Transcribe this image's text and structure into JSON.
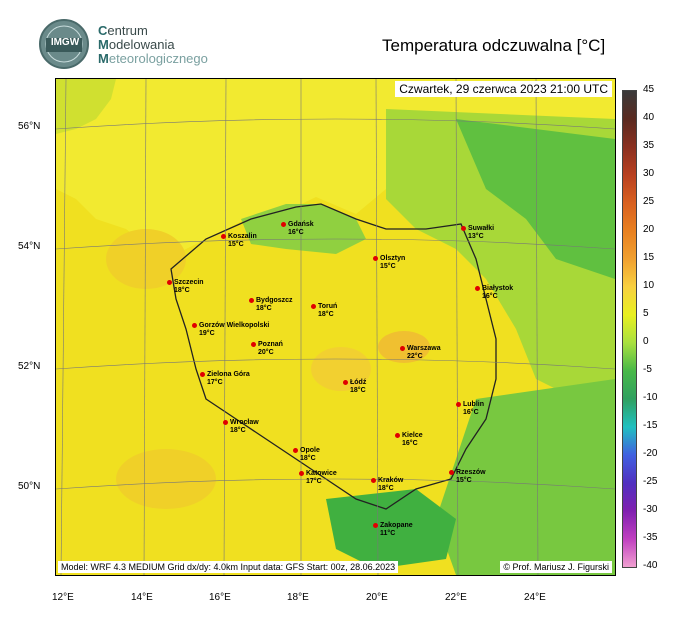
{
  "logo": {
    "emblem_text": "IMGW",
    "line1_initial": "C",
    "line1_rest": "entrum",
    "line2_initial": "M",
    "line2_rest": "odelowania",
    "line3_initial": "M",
    "line3_rest": "eteorologicznego"
  },
  "title": "Temperatura odczuwalna [°C]",
  "timestamp": "Czwartek, 29 czerwca 2023 21:00 UTC",
  "bottom_info": "Model: WRF 4.3 MEDIUM   Grid dx/dy: 4.0km   Input data: GFS   Start: 00z, 28.06.2023",
  "credit": "© Prof. Mariusz J. Figurski",
  "lat_labels": [
    "56°N",
    "54°N",
    "52°N",
    "50°N"
  ],
  "lon_labels": [
    "12°E",
    "14°E",
    "16°E",
    "18°E",
    "20°E",
    "22°E",
    "24°E"
  ],
  "colorbar": {
    "ticks": [
      "45",
      "40",
      "35",
      "30",
      "25",
      "20",
      "15",
      "10",
      "5",
      "0",
      "-5",
      "-10",
      "-15",
      "-20",
      "-25",
      "-30",
      "-35",
      "-40"
    ],
    "colors": [
      "#3a3a3a",
      "#5a2a20",
      "#8a3020",
      "#b84020",
      "#d86020",
      "#e88020",
      "#f0a030",
      "#f8d040",
      "#e8f020",
      "#a8e040",
      "#48b848",
      "#30a060",
      "#20c0c0",
      "#4060e0",
      "#5030c0",
      "#8020b0",
      "#c040c0",
      "#f0a0d0"
    ]
  },
  "cities": [
    {
      "name": "Gdańsk",
      "temp": "16°C"
    },
    {
      "name": "Koszalin",
      "temp": "15°C"
    },
    {
      "name": "Suwałki",
      "temp": "13°C"
    },
    {
      "name": "Olsztyn",
      "temp": "15°C"
    },
    {
      "name": "Szczecin",
      "temp": "18°C"
    },
    {
      "name": "Bydgoszcz",
      "temp": "18°C"
    },
    {
      "name": "Toruń",
      "temp": "18°C"
    },
    {
      "name": "Białystok",
      "temp": "16°C"
    },
    {
      "name": "Gorzów Wielkopolski",
      "temp": "19°C"
    },
    {
      "name": "Poznań",
      "temp": "20°C"
    },
    {
      "name": "Warszawa",
      "temp": "22°C"
    },
    {
      "name": "Zielona Góra",
      "temp": "17°C"
    },
    {
      "name": "Łódź",
      "temp": "18°C"
    },
    {
      "name": "Lublin",
      "temp": "16°C"
    },
    {
      "name": "Wrocław",
      "temp": "18°C"
    },
    {
      "name": "Kielce",
      "temp": "16°C"
    },
    {
      "name": "Opole",
      "temp": "18°C"
    },
    {
      "name": "Katowice",
      "temp": "17°C"
    },
    {
      "name": "Kraków",
      "temp": "18°C"
    },
    {
      "name": "Rzeszów",
      "temp": "15°C"
    },
    {
      "name": "Zakopane",
      "temp": "11°C"
    }
  ]
}
